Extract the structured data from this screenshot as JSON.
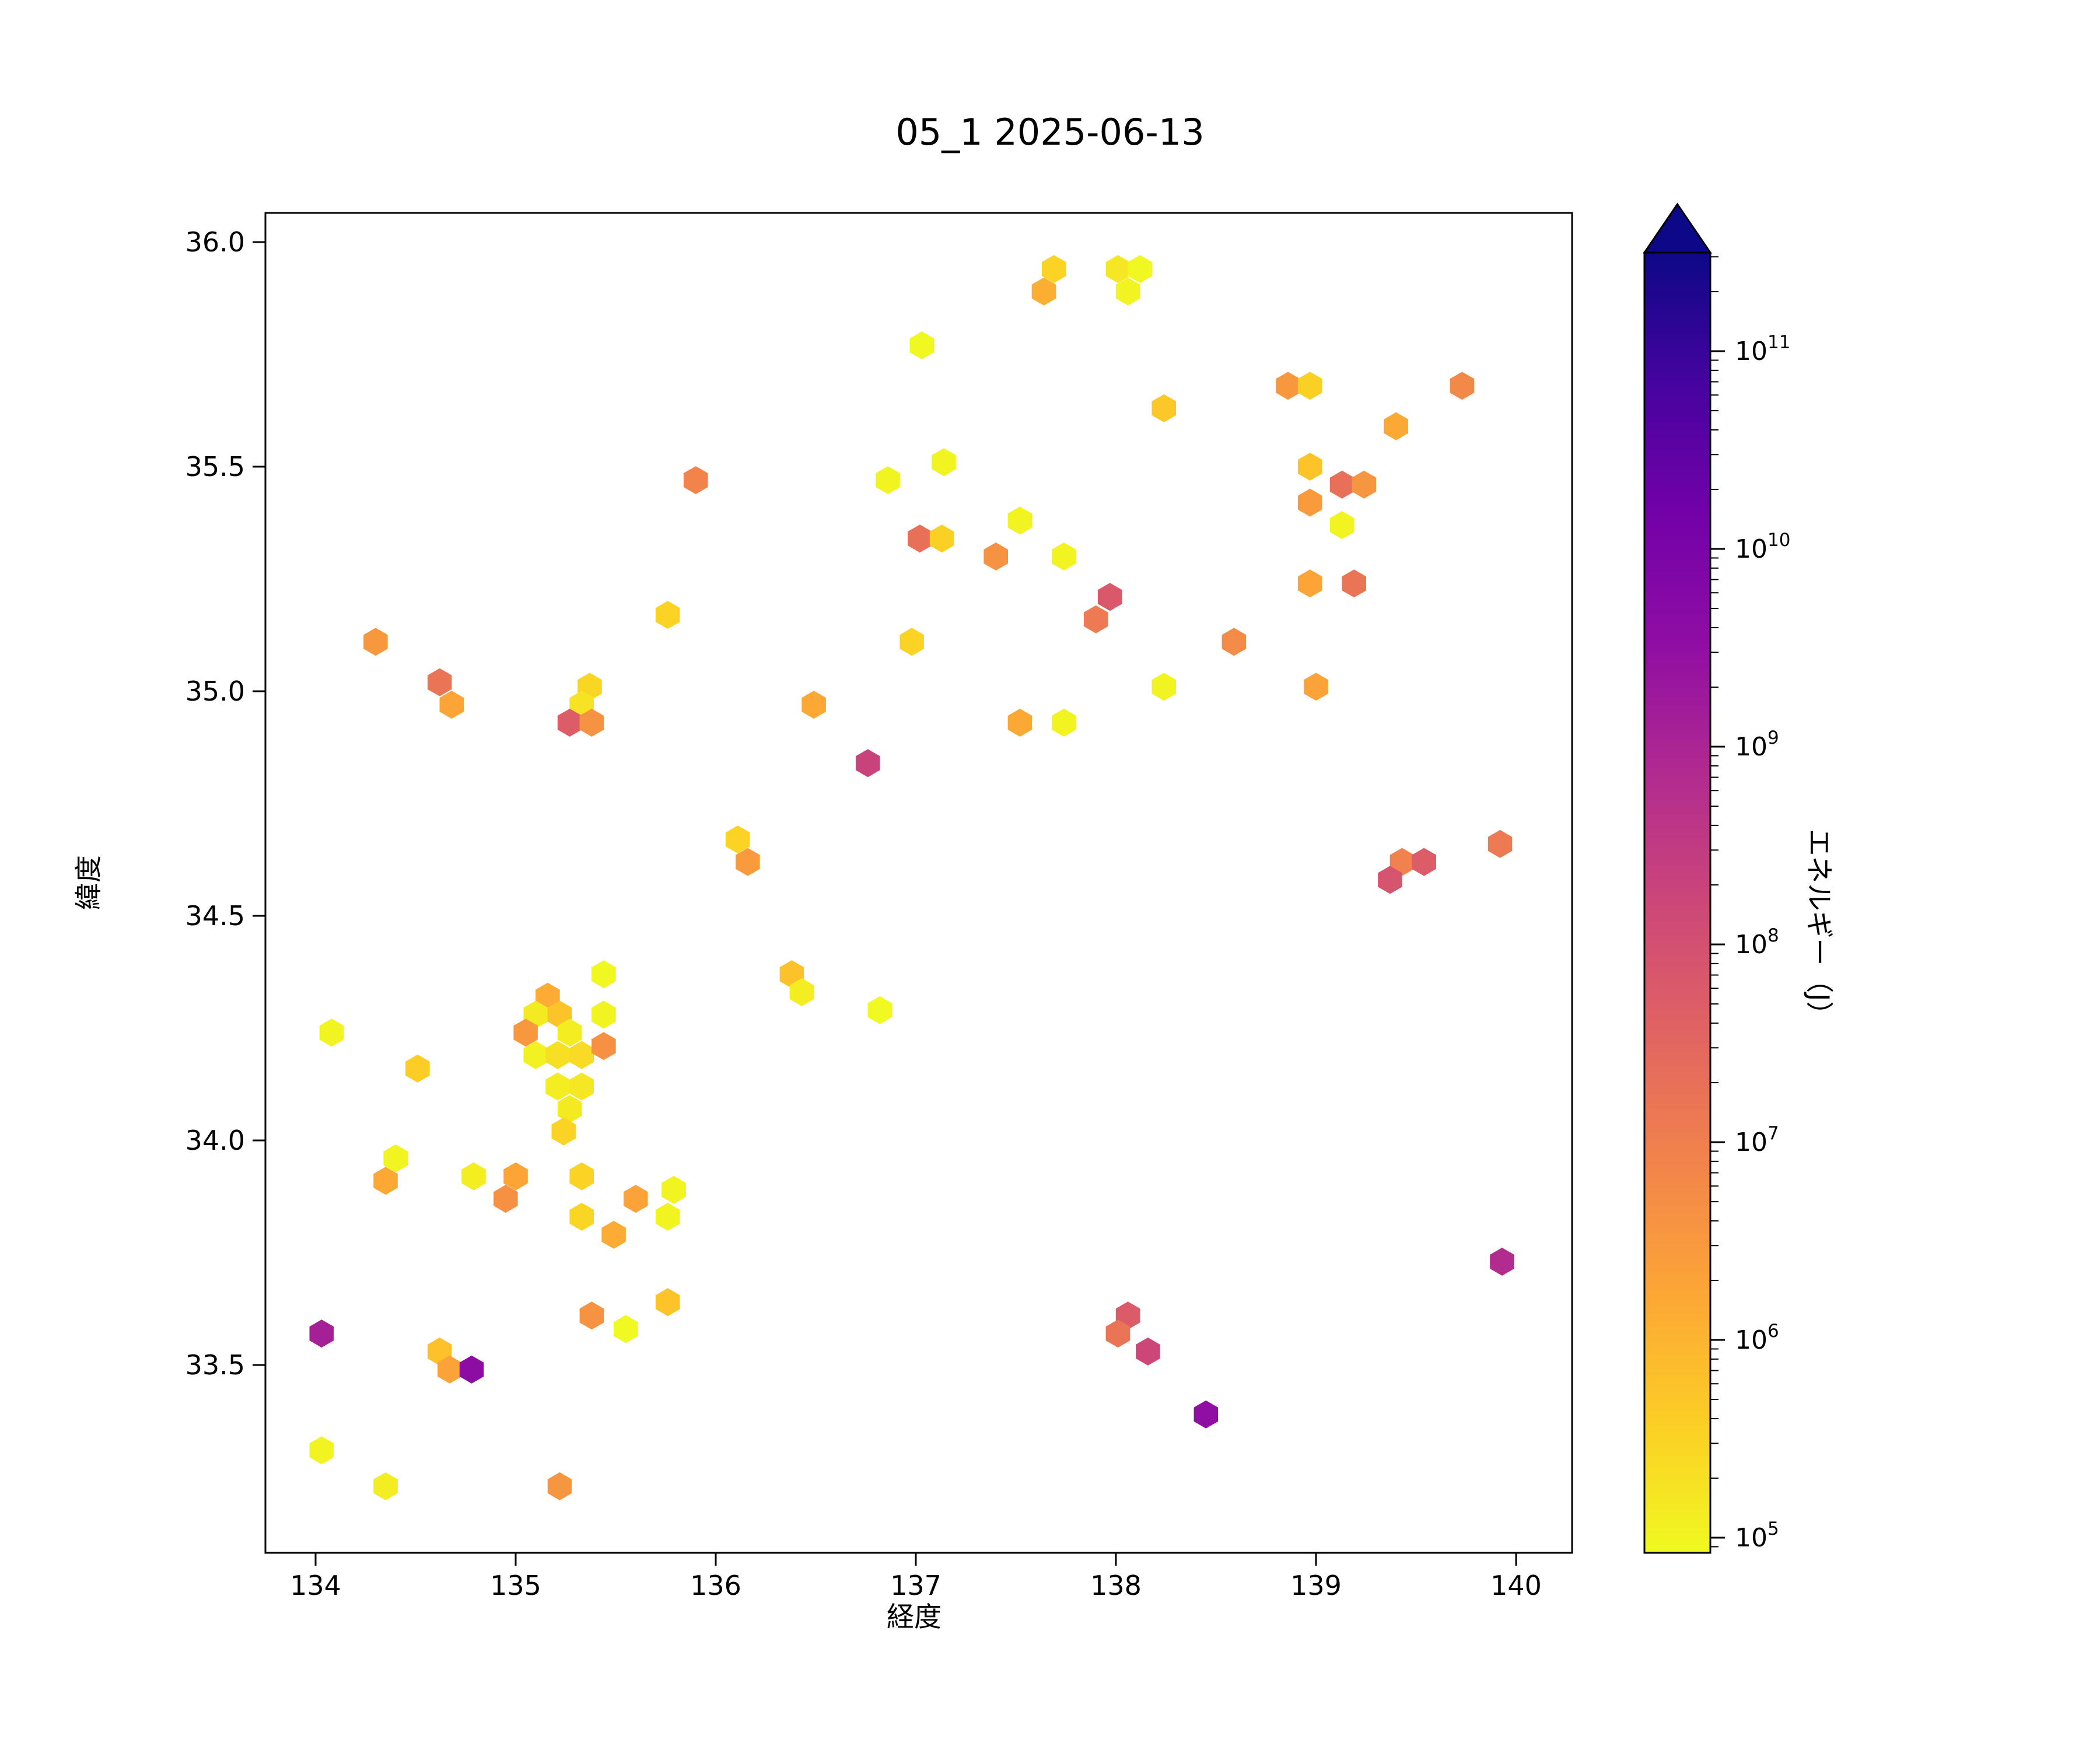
{
  "title": "05_1 2025-06-13",
  "axes": {
    "xlabel": "経度",
    "ylabel": "緯度",
    "xtick_labels": [
      "134",
      "135",
      "136",
      "137",
      "138",
      "139",
      "140"
    ],
    "xtick_values": [
      134,
      135,
      136,
      137,
      138,
      139,
      140
    ],
    "ytick_labels": [
      "36.0",
      "35.5",
      "35.0",
      "34.5",
      "34.0",
      "33.5"
    ],
    "ytick_values": [
      36.0,
      35.5,
      35.0,
      34.5,
      34.0,
      33.5
    ],
    "xlim": [
      133.75,
      140.28
    ],
    "ylim": [
      33.08,
      36.06
    ]
  },
  "colorbar": {
    "label": "エネルギー（J）",
    "tick_exponents": [
      5,
      6,
      7,
      8,
      9,
      10,
      11
    ],
    "log10_min": 4.92,
    "log10_max": 11.5,
    "scale": "log",
    "extend": "max",
    "colormap": "plasma_r",
    "plasma_stops": [
      "#0d0887",
      "#46039f",
      "#7201a8",
      "#8f0da4",
      "#b12a90",
      "#cc4778",
      "#e16462",
      "#f2844b",
      "#fca636",
      "#fcce25",
      "#f0f921"
    ]
  },
  "chart_data": {
    "type": "scatter",
    "marker": "hexagon",
    "title": "05_1 2025-06-13",
    "xlabel": "経度",
    "ylabel": "緯度",
    "value_label": "エネルギー（J）",
    "value_encoding": "log10 of energy in Joules, mapped to reversed plasma colormap",
    "xlim": [
      133.75,
      140.28
    ],
    "ylim": [
      33.08,
      36.06
    ],
    "clim_log10": [
      4.92,
      11.5
    ],
    "grid": false,
    "legend": "colorbar right",
    "points_format": [
      "longitude",
      "latitude",
      "log10_energy_J"
    ],
    "points": [
      [
        135.9,
        35.47,
        6.9
      ],
      [
        134.3,
        35.11,
        6.5
      ],
      [
        135.76,
        35.17,
        5.5
      ],
      [
        137.69,
        35.94,
        5.5
      ],
      [
        137.64,
        35.89,
        6.1
      ],
      [
        138.01,
        35.94,
        5.2
      ],
      [
        138.12,
        35.94,
        4.95
      ],
      [
        138.06,
        35.89,
        5.0
      ],
      [
        137.03,
        35.77,
        4.95
      ],
      [
        137.14,
        35.51,
        5.0
      ],
      [
        136.86,
        35.47,
        5.0
      ],
      [
        137.52,
        35.38,
        5.0
      ],
      [
        137.02,
        35.34,
        7.3
      ],
      [
        137.13,
        35.34,
        5.55
      ],
      [
        137.4,
        35.3,
        6.6
      ],
      [
        137.74,
        35.3,
        5.0
      ],
      [
        137.97,
        35.21,
        7.8
      ],
      [
        137.9,
        35.16,
        7.1
      ],
      [
        136.98,
        35.11,
        5.5
      ],
      [
        138.24,
        35.63,
        5.7
      ],
      [
        138.86,
        35.68,
        6.5
      ],
      [
        138.97,
        35.68,
        5.55
      ],
      [
        139.73,
        35.68,
        6.8
      ],
      [
        139.4,
        35.59,
        6.2
      ],
      [
        138.97,
        35.5,
        5.75
      ],
      [
        139.13,
        35.46,
        7.3
      ],
      [
        139.24,
        35.46,
        6.55
      ],
      [
        138.97,
        35.42,
        6.45
      ],
      [
        139.13,
        35.37,
        5.0
      ],
      [
        138.97,
        35.24,
        6.25
      ],
      [
        139.19,
        35.24,
        7.2
      ],
      [
        138.59,
        35.11,
        6.75
      ],
      [
        134.62,
        35.02,
        7.2
      ],
      [
        134.68,
        34.97,
        6.25
      ],
      [
        135.37,
        35.01,
        5.45
      ],
      [
        135.33,
        34.97,
        5.25
      ],
      [
        135.27,
        34.93,
        7.7
      ],
      [
        135.38,
        34.93,
        6.6
      ],
      [
        134.08,
        34.24,
        5.0
      ],
      [
        134.51,
        34.16,
        5.6
      ],
      [
        135.44,
        34.37,
        4.95
      ],
      [
        135.16,
        34.32,
        6.15
      ],
      [
        135.1,
        34.28,
        5.15
      ],
      [
        135.22,
        34.28,
        5.75
      ],
      [
        135.44,
        34.28,
        5.0
      ],
      [
        135.05,
        34.24,
        6.5
      ],
      [
        135.27,
        34.24,
        5.1
      ],
      [
        135.1,
        34.19,
        5.05
      ],
      [
        135.21,
        34.19,
        5.3
      ],
      [
        135.33,
        34.19,
        5.4
      ],
      [
        135.44,
        34.21,
        6.65
      ],
      [
        135.21,
        34.12,
        5.1
      ],
      [
        135.33,
        34.12,
        5.2
      ],
      [
        135.27,
        34.07,
        5.15
      ],
      [
        135.24,
        34.02,
        5.5
      ],
      [
        136.49,
        34.97,
        6.2
      ],
      [
        137.52,
        34.93,
        6.2
      ],
      [
        137.74,
        34.93,
        5.0
      ],
      [
        136.76,
        34.84,
        8.3
      ],
      [
        136.11,
        34.67,
        5.5
      ],
      [
        136.16,
        34.62,
        6.45
      ],
      [
        136.38,
        34.37,
        5.8
      ],
      [
        136.43,
        34.33,
        5.1
      ],
      [
        136.82,
        34.29,
        4.9
      ],
      [
        138.24,
        35.01,
        5.0
      ],
      [
        139.0,
        35.01,
        6.3
      ],
      [
        139.92,
        34.66,
        7.1
      ],
      [
        139.43,
        34.62,
        6.95
      ],
      [
        139.54,
        34.62,
        7.7
      ],
      [
        139.37,
        34.58,
        7.9
      ],
      [
        134.4,
        33.96,
        5.0
      ],
      [
        134.35,
        33.91,
        6.2
      ],
      [
        134.79,
        33.92,
        5.1
      ],
      [
        135.0,
        33.92,
        6.25
      ],
      [
        134.95,
        33.87,
        6.65
      ],
      [
        135.33,
        33.92,
        5.5
      ],
      [
        135.33,
        33.83,
        5.45
      ],
      [
        135.49,
        33.79,
        6.15
      ],
      [
        135.6,
        33.87,
        6.3
      ],
      [
        135.79,
        33.89,
        5.0
      ],
      [
        135.76,
        33.83,
        5.0
      ],
      [
        135.76,
        33.64,
        5.75
      ],
      [
        135.38,
        33.61,
        6.6
      ],
      [
        135.55,
        33.58,
        4.9
      ],
      [
        134.03,
        33.57,
        9.1
      ],
      [
        134.62,
        33.53,
        5.8
      ],
      [
        134.67,
        33.49,
        6.3
      ],
      [
        134.78,
        33.49,
        9.6
      ],
      [
        134.03,
        33.31,
        5.0
      ],
      [
        134.35,
        33.23,
        5.1
      ],
      [
        135.22,
        33.23,
        6.55
      ],
      [
        138.06,
        33.61,
        7.75
      ],
      [
        138.01,
        33.57,
        7.2
      ],
      [
        138.16,
        33.53,
        8.2
      ],
      [
        139.93,
        33.73,
        8.85
      ],
      [
        138.45,
        33.39,
        9.5
      ]
    ]
  }
}
